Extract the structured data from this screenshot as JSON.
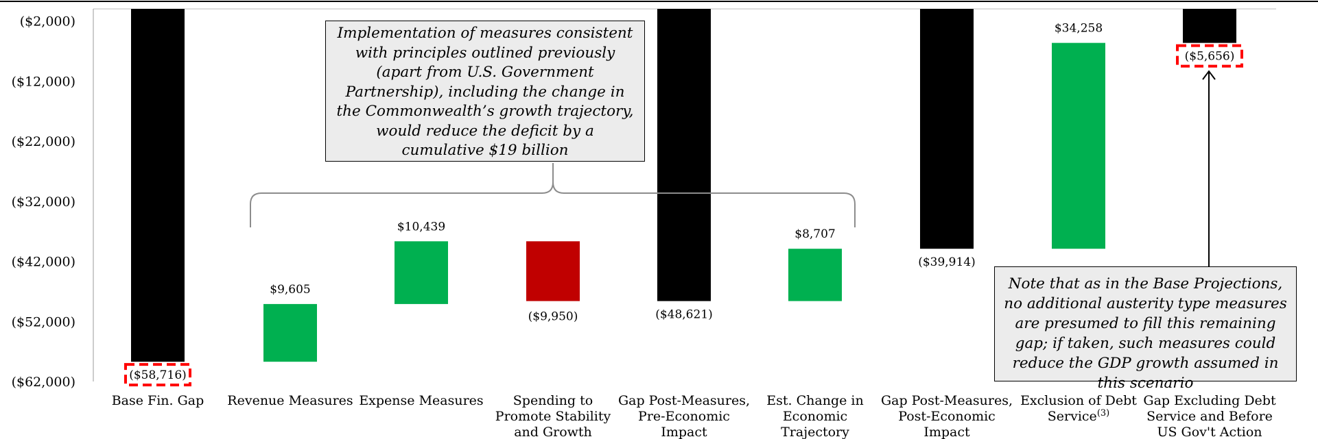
{
  "chart_data": {
    "type": "bar",
    "subtype": "waterfall",
    "y_tick_labels": [
      "($2,000)",
      "($12,000)",
      "($22,000)",
      "($32,000)",
      "($42,000)",
      "($52,000)",
      "($62,000)"
    ],
    "ylim": [
      -62000,
      -2000
    ],
    "grid": false,
    "categories": [
      "Base Fin. Gap",
      "Revenue Measures",
      "Expense Measures",
      "Spending to Promote Stability and Growth",
      "Gap Post-Measures, Pre-Economic Impact",
      "Est. Change in Economic Trajectory",
      "Gap Post-Measures, Post-Economic Impact",
      "Exclusion of Debt Service",
      "Gap Excluding Debt Service and Before US Gov't Action"
    ],
    "category_lines": [
      [
        "Base Fin. Gap"
      ],
      [
        "Revenue Measures"
      ],
      [
        "Expense Measures"
      ],
      [
        "Spending to",
        "Promote Stability",
        "and Growth"
      ],
      [
        "Gap Post-Measures,",
        "Pre-Economic",
        "Impact"
      ],
      [
        "Est. Change in",
        "Economic",
        "Trajectory"
      ],
      [
        "Gap Post-Measures,",
        "Post-Economic",
        "Impact"
      ],
      [
        "Exclusion of Debt",
        "Service"
      ],
      [
        "Gap Excluding Debt",
        "Service and Before",
        "US Gov't Action"
      ]
    ],
    "category_superscripts": [
      "",
      "",
      "",
      "",
      "",
      "",
      "",
      "(3)",
      ""
    ],
    "bars": [
      {
        "kind": "total",
        "start": 0,
        "end": -58716,
        "label": "($58,716)",
        "highlight": true,
        "color": "#000000"
      },
      {
        "kind": "increase",
        "start": -58716,
        "end": -49111,
        "label": "$9,605",
        "highlight": false,
        "color": "#00b050"
      },
      {
        "kind": "increase",
        "start": -49111,
        "end": -38672,
        "label": "$10,439",
        "highlight": false,
        "color": "#00b050"
      },
      {
        "kind": "decrease",
        "start": -38672,
        "end": -48621,
        "label": "($9,950)",
        "highlight": false,
        "color": "#c00000"
      },
      {
        "kind": "total",
        "start": 0,
        "end": -48621,
        "label": "($48,621)",
        "highlight": false,
        "color": "#000000"
      },
      {
        "kind": "increase",
        "start": -48621,
        "end": -39914,
        "label": "$8,707",
        "highlight": false,
        "color": "#00b050"
      },
      {
        "kind": "total",
        "start": 0,
        "end": -39914,
        "label": "($39,914)",
        "highlight": false,
        "color": "#000000"
      },
      {
        "kind": "increase",
        "start": -39914,
        "end": -5656,
        "label": "$34,258",
        "highlight": false,
        "color": "#00b050"
      },
      {
        "kind": "total",
        "start": 0,
        "end": -5656,
        "label": "($5,656)",
        "highlight": true,
        "color": "#000000"
      }
    ],
    "annotations": [
      "Implementation of measures consistent with principles outlined previously (apart from U.S. Government Partnership), including the change in the Commonwealth’s growth trajectory, would reduce the deficit by a cumulative $19 billion",
      "Note that as in the Base Projections, no additional austerity type measures are presumed to fill this remaining gap; if taken, such measures could reduce the GDP growth assumed in this scenario"
    ],
    "colors": {
      "total": "#000000",
      "increase": "#00b050",
      "decrease": "#c00000",
      "highlight_border": "#ff0000",
      "callout_fill": "#ececec"
    }
  },
  "callouts": {
    "top": "Implementation of measures consistent with principles outlined previously (apart from U.S. Government Partnership), including the change in the Commonwealth’s growth trajectory, would reduce the deficit by a cumulative $19 billion",
    "note": "Note that as in the Base Projections, no additional austerity type measures are presumed to fill this remaining gap; if taken, such measures could reduce the GDP growth assumed in this scenario"
  }
}
